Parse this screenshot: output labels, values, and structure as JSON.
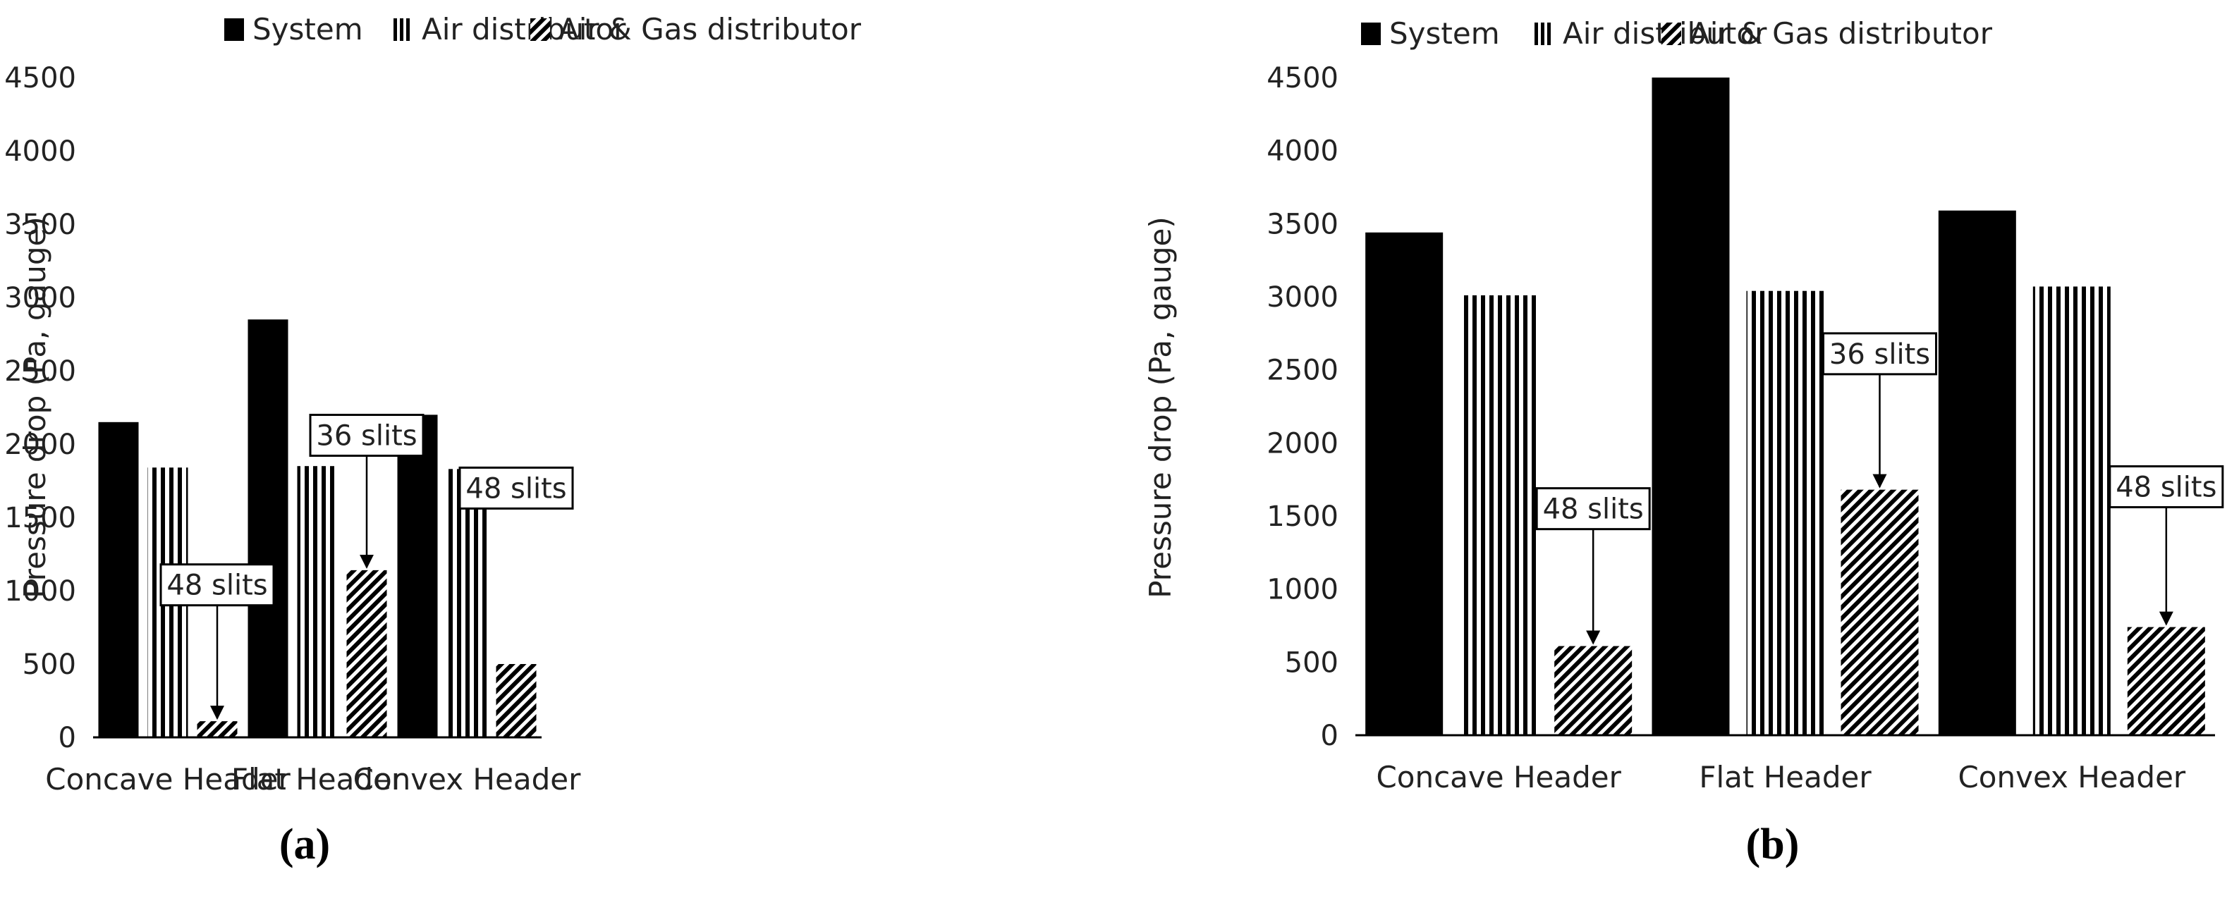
{
  "chart_data": [
    {
      "type": "bar",
      "panel_label": "(a)",
      "categories": [
        "Concave Header",
        "Flat Header",
        "Convex Header"
      ],
      "series": [
        {
          "name": "System",
          "values": [
            2150,
            2850,
            2200
          ],
          "pattern": "solid"
        },
        {
          "name": "Air distributor",
          "values": [
            1840,
            1850,
            1830
          ],
          "pattern": "vertical-stripes"
        },
        {
          "name": "Air & Gas distributor",
          "values": [
            110,
            1140,
            500
          ],
          "pattern": "diagonal-hatch"
        }
      ],
      "ylabel": "Pressure drop (Pa, gauge)",
      "ylim": [
        0,
        4500
      ],
      "yticks": [
        "0",
        "500",
        "1000",
        "1500",
        "2000",
        "2500",
        "3000",
        "3500",
        "4000",
        "4500"
      ],
      "grid": false,
      "legend_position": "top",
      "annotations": [
        {
          "text": "48 slits",
          "category": "Concave Header",
          "box_value": 1040,
          "arrow_to": 110
        },
        {
          "text": "36 slits",
          "category": "Flat Header",
          "box_value": 2060,
          "arrow_to": 1140
        },
        {
          "text": "48 slits",
          "category": "Convex Header",
          "box_value": 1700,
          "arrow_to": null
        }
      ]
    },
    {
      "type": "bar",
      "panel_label": "(b)",
      "categories": [
        "Concave Header",
        "Flat Header",
        "Convex Header"
      ],
      "series": [
        {
          "name": "System",
          "values": [
            3440,
            4500,
            3590
          ],
          "pattern": "solid"
        },
        {
          "name": "Air distributor",
          "values": [
            3010,
            3040,
            3070
          ],
          "pattern": "vertical-stripes"
        },
        {
          "name": "Air & Gas distributor",
          "values": [
            610,
            1680,
            740
          ],
          "pattern": "diagonal-hatch"
        }
      ],
      "ylabel": "Pressure drop (Pa, gauge)",
      "ylim": [
        0,
        4500
      ],
      "yticks": [
        "0",
        "500",
        "1000",
        "1500",
        "2000",
        "2500",
        "3000",
        "3500",
        "4000",
        "4500"
      ],
      "grid": false,
      "legend_position": "top",
      "annotations": [
        {
          "text": "48 slits",
          "category": "Concave Header",
          "box_value": 1550,
          "arrow_to": 610
        },
        {
          "text": "36 slits",
          "category": "Flat Header",
          "box_value": 2610,
          "arrow_to": 1680
        },
        {
          "text": "48 slits",
          "category": "Convex Header",
          "box_value": 1700,
          "arrow_to": 740
        }
      ]
    }
  ],
  "colors": {
    "bar": "#000000",
    "background": "#ffffff",
    "text": "#222222"
  }
}
